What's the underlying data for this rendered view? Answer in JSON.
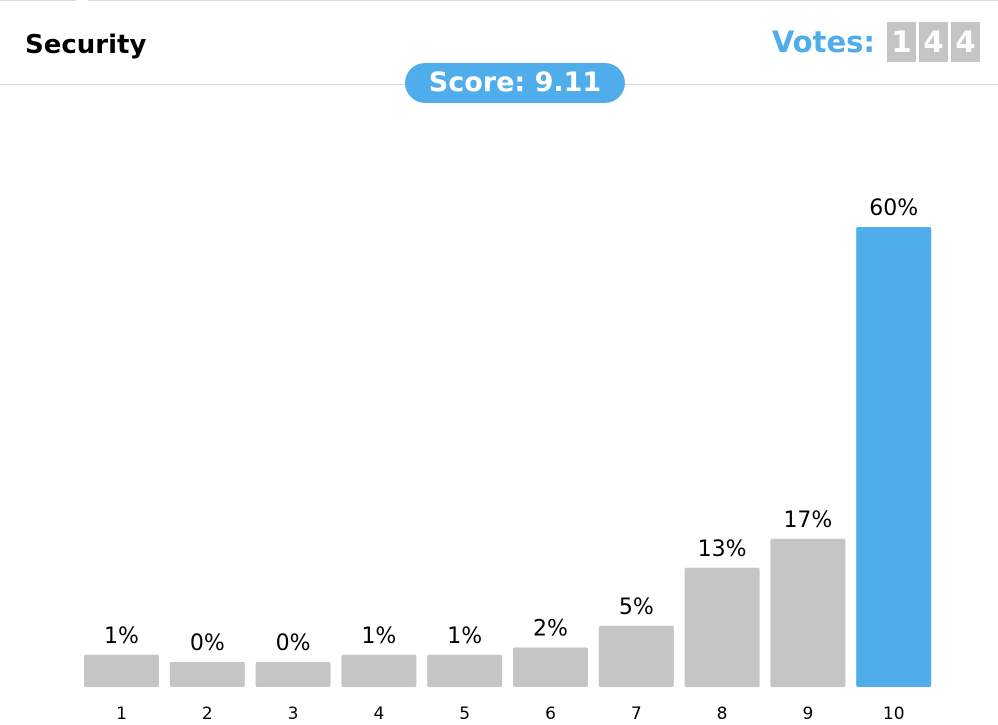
{
  "header": {
    "title": "Security",
    "votes_label": "Votes:",
    "votes_digits": [
      "1",
      "4",
      "4"
    ],
    "score_text": "Score: 9.11"
  },
  "colors": {
    "accent": "#4fadec",
    "bar_default": "#c5c5c5",
    "bar_highlight": "#4fadec"
  },
  "chart_data": {
    "type": "bar",
    "categories": [
      "1",
      "2",
      "3",
      "4",
      "5",
      "6",
      "7",
      "8",
      "9",
      "10"
    ],
    "values": [
      1,
      0,
      0,
      1,
      1,
      2,
      5,
      13,
      17,
      60
    ],
    "value_labels": [
      "1%",
      "0%",
      "0%",
      "1%",
      "1%",
      "2%",
      "5%",
      "13%",
      "17%",
      "60%"
    ],
    "highlight_category": "10",
    "title": "",
    "xlabel": "",
    "ylabel": "",
    "ylim": [
      0,
      60
    ],
    "grid": false
  }
}
